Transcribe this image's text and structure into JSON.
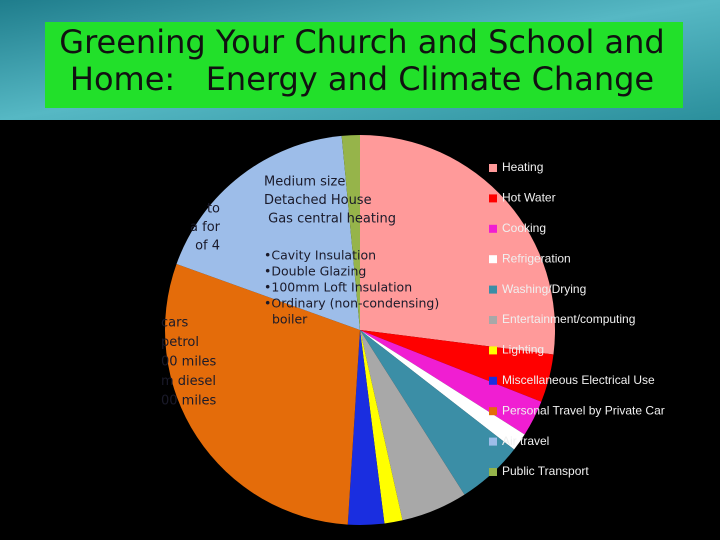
{
  "chart_data": {
    "type": "pie",
    "title": [
      "Greening Your Church and School and",
      "Home:   Energy and Climate Change"
    ],
    "categories": [
      "Heating",
      "Hot Water",
      "Cooking",
      "Refrigeration",
      "Washing/Drying",
      "Entertainment/computing",
      "Lighting",
      "Miscellaneous Electrical Use",
      "Personal Travel by Private Car",
      "Air travel",
      "Public Transport"
    ],
    "values": [
      27,
      4,
      3,
      1.5,
      5.5,
      5.5,
      1.5,
      3,
      29.5,
      18,
      1.5
    ],
    "colors": [
      "#ff9a9a",
      "#ff0000",
      "#f01ed2",
      "#ffffff",
      "#3b8ea6",
      "#a8a8a8",
      "#ffff00",
      "#1a2ee0",
      "#e46c0a",
      "#9dbde9",
      "#96b44a"
    ],
    "annotations": {
      "house": [
        "Medium size",
        "Detached House",
        " Gas central heating"
      ],
      "measures": [
        "•Cavity Insulation",
        "•Double Glazing",
        "•100mm Loft Insulation",
        "•Ordinary (non-condensing)",
        "  boiler"
      ],
      "left_upper": [
        "to",
        "a for",
        "of 4"
      ],
      "left_lower": [
        "cars",
        "petrol",
        "00 miles",
        "m diesel",
        "00 miles"
      ]
    }
  }
}
